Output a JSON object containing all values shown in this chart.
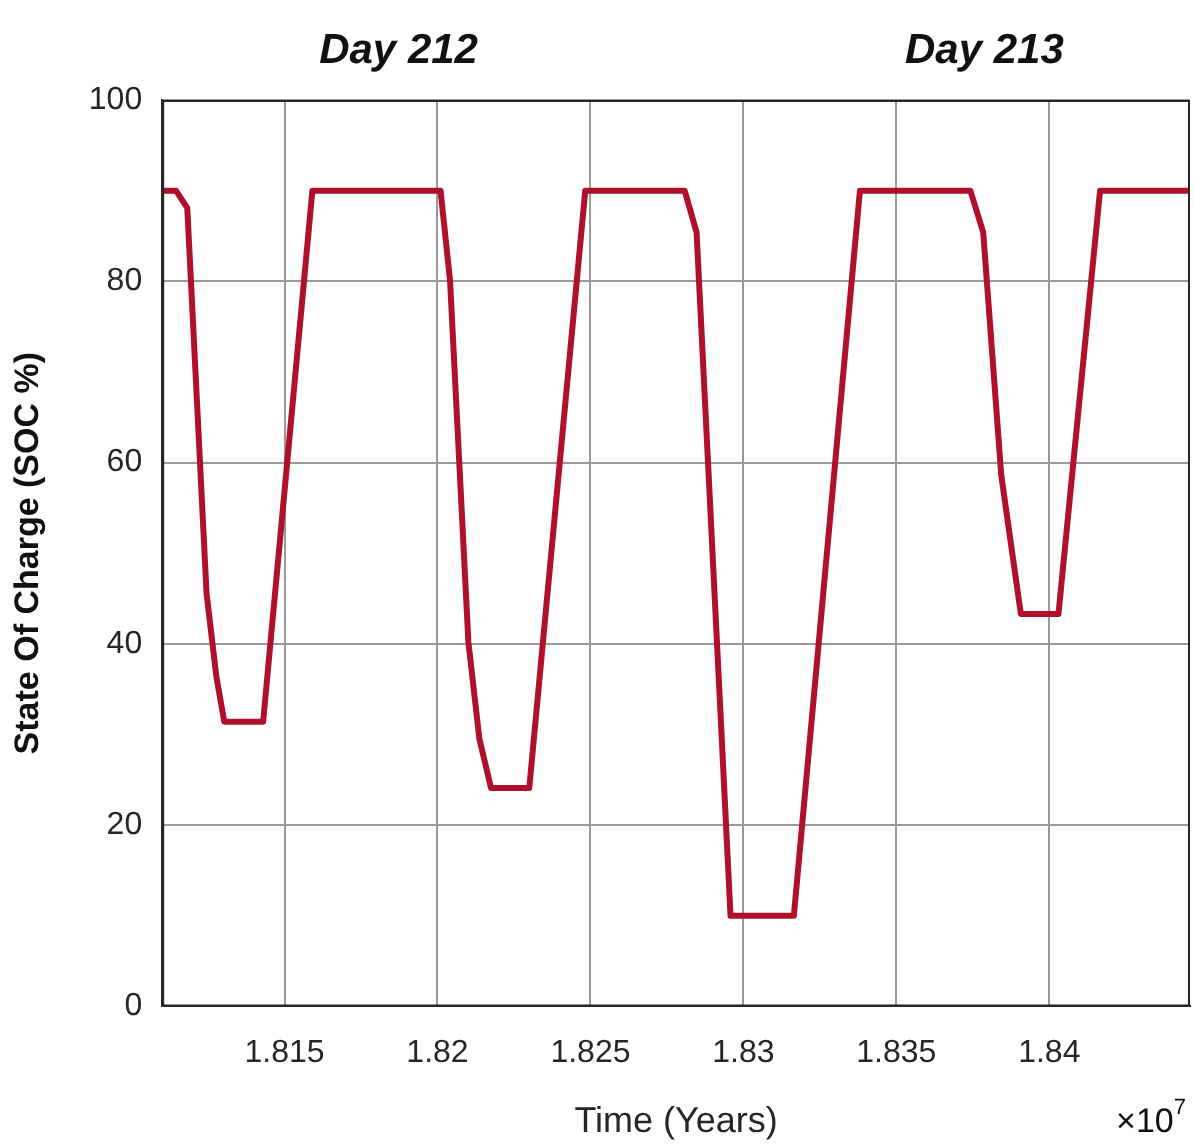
{
  "chart_data": {
    "type": "line",
    "xlabel": "Time (Years)",
    "ylabel": "State Of Charge (SOC %)",
    "annotations": [
      "Day 212",
      "Day 213",
      "×10$^{7}$"
    ],
    "xlim": [
      1.811,
      1.8446
    ],
    "xticks": [
      1.815,
      1.82,
      1.825,
      1.83,
      1.835,
      1.84
    ],
    "ylim": [
      0,
      100
    ],
    "yticks": [
      0,
      20,
      40,
      60,
      80,
      100
    ],
    "grid": true,
    "legend": false,
    "marker": "none",
    "line_style": "solid",
    "series": [
      {
        "color": "#b0102c",
        "x": [
          1.81107,
          1.81145,
          1.81182,
          1.81245,
          1.81277,
          1.81303,
          1.8143,
          1.81591,
          1.8201,
          1.82041,
          1.82101,
          1.82137,
          1.82175,
          1.823,
          1.82483,
          1.82808,
          1.82847,
          1.82958,
          1.83165,
          1.83381,
          1.83742,
          1.83784,
          1.83843,
          1.83907,
          1.8403,
          1.84166,
          1.8446
        ],
        "values": [
          90,
          90,
          88.1,
          45.6,
          36.4,
          31.4,
          31.4,
          90,
          90,
          80.1,
          40.2,
          29.5,
          24.1,
          24.1,
          90,
          90,
          85.4,
          10,
          10,
          90,
          90,
          85.4,
          58.6,
          43.3,
          43.3,
          90,
          90
        ]
      }
    ]
  }
}
